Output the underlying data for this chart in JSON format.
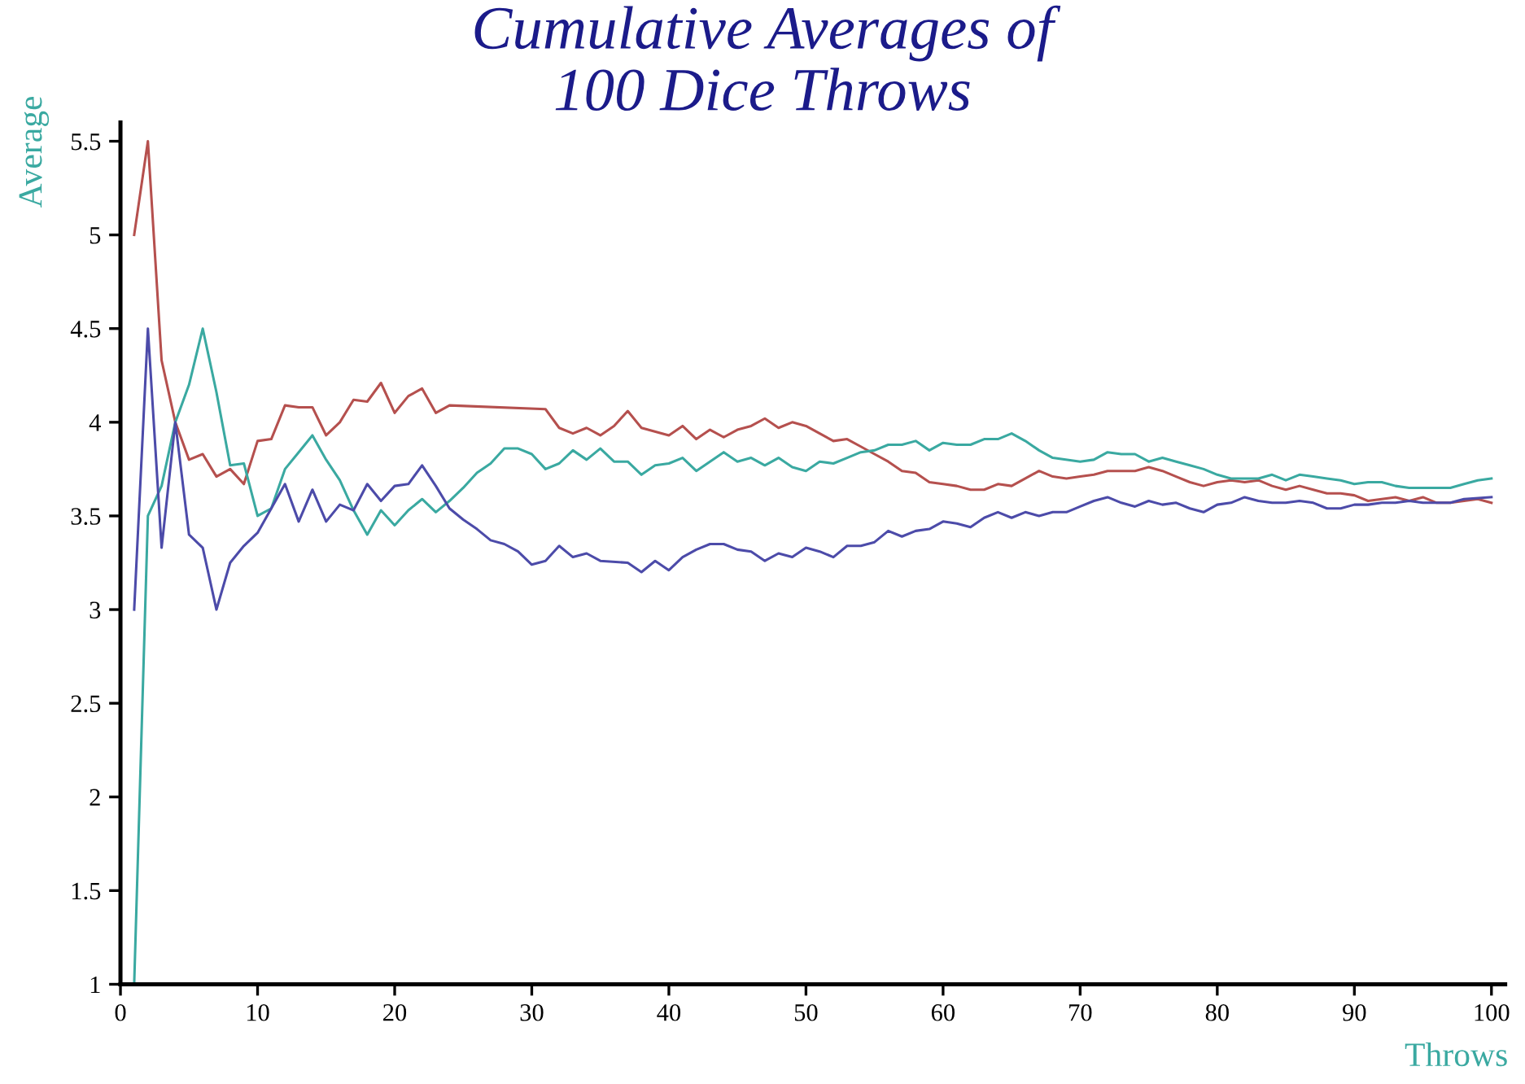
{
  "chart_data": {
    "type": "line",
    "title": "Cumulative Averages of\n100 Dice Throws",
    "xlabel": "Throws",
    "ylabel": "Average",
    "xlim": [
      0,
      101
    ],
    "xticks": [
      0,
      10,
      20,
      30,
      40,
      50,
      60,
      70,
      80,
      90,
      100
    ],
    "ylim": [
      1,
      5.6
    ],
    "yticks": [
      1,
      1.5,
      2,
      2.5,
      3,
      3.5,
      4,
      4.5,
      5,
      5.5
    ],
    "grid": false,
    "marker": "none",
    "line_style": "solid",
    "series": [
      {
        "color": "#b5504e",
        "x": [
          1,
          2,
          3,
          4,
          5,
          6,
          7,
          8,
          9,
          10,
          11,
          12,
          13,
          14,
          15,
          16,
          17,
          18,
          19,
          20,
          21,
          22,
          23,
          24,
          31,
          32,
          33,
          34,
          35,
          36,
          37,
          38,
          40,
          41,
          42,
          43,
          44,
          45,
          46,
          47,
          48,
          49,
          50,
          51,
          52,
          53,
          54,
          55,
          56,
          57,
          58,
          59,
          60,
          61,
          62,
          63,
          64,
          65,
          66,
          67,
          68,
          69,
          70,
          71,
          72,
          73,
          74,
          75,
          76,
          77,
          78,
          79,
          80,
          81,
          82,
          83,
          84,
          85,
          86,
          87,
          88,
          89,
          90,
          91,
          92,
          93,
          94,
          95,
          96,
          97,
          98,
          99,
          100
        ],
        "values": [
          5,
          5.5,
          4.33,
          4,
          3.8,
          3.83,
          3.71,
          3.75,
          3.67,
          3.9,
          3.91,
          4.09,
          4.08,
          4.08,
          3.93,
          4,
          4.12,
          4.11,
          4.21,
          4.05,
          4.14,
          4.18,
          4.05,
          4.09,
          4.07,
          3.97,
          3.94,
          3.97,
          3.93,
          3.98,
          4.06,
          3.97,
          3.93,
          3.98,
          3.91,
          3.96,
          3.92,
          3.96,
          3.98,
          4.02,
          3.97,
          4,
          3.98,
          3.94,
          3.9,
          3.91,
          3.87,
          3.83,
          3.79,
          3.74,
          3.73,
          3.68,
          3.67,
          3.66,
          3.64,
          3.64,
          3.67,
          3.66,
          3.7,
          3.74,
          3.71,
          3.7,
          3.71,
          3.72,
          3.74,
          3.74,
          3.74,
          3.76,
          3.74,
          3.71,
          3.68,
          3.66,
          3.68,
          3.69,
          3.68,
          3.69,
          3.66,
          3.64,
          3.66,
          3.64,
          3.62,
          3.62,
          3.61,
          3.58,
          3.59,
          3.6,
          3.58,
          3.6,
          3.57,
          3.57,
          3.58,
          3.59,
          3.57
        ]
      },
      {
        "color": "#3aa9a1",
        "x": [
          1,
          2,
          3,
          4,
          5,
          6,
          7,
          8,
          9,
          10,
          11,
          12,
          13,
          14,
          15,
          16,
          17,
          18,
          19,
          20,
          21,
          22,
          23,
          24,
          25,
          26,
          27,
          28,
          29,
          30,
          31,
          32,
          33,
          34,
          35,
          36,
          37,
          38,
          39,
          40,
          41,
          42,
          43,
          44,
          45,
          46,
          47,
          48,
          49,
          50,
          51,
          52,
          53,
          54,
          55,
          56,
          57,
          58,
          59,
          60,
          61,
          62,
          63,
          64,
          65,
          66,
          67,
          68,
          70,
          71,
          72,
          73,
          74,
          75,
          76,
          77,
          78,
          79,
          80,
          81,
          83,
          84,
          85,
          86,
          87,
          88,
          89,
          90,
          91,
          92,
          93,
          94,
          95,
          96,
          97,
          98,
          99,
          100
        ],
        "values": [
          1,
          3.5,
          3.66,
          4,
          4.2,
          4.5,
          4.16,
          3.77,
          3.78,
          3.5,
          3.54,
          3.75,
          3.84,
          3.93,
          3.8,
          3.69,
          3.53,
          3.4,
          3.53,
          3.45,
          3.53,
          3.59,
          3.52,
          3.58,
          3.65,
          3.73,
          3.78,
          3.86,
          3.86,
          3.83,
          3.75,
          3.78,
          3.85,
          3.8,
          3.86,
          3.79,
          3.79,
          3.72,
          3.77,
          3.78,
          3.81,
          3.74,
          3.79,
          3.84,
          3.79,
          3.81,
          3.77,
          3.81,
          3.76,
          3.74,
          3.79,
          3.78,
          3.81,
          3.84,
          3.85,
          3.88,
          3.88,
          3.9,
          3.85,
          3.89,
          3.88,
          3.88,
          3.91,
          3.91,
          3.94,
          3.9,
          3.85,
          3.81,
          3.79,
          3.8,
          3.84,
          3.83,
          3.83,
          3.79,
          3.81,
          3.79,
          3.77,
          3.75,
          3.72,
          3.7,
          3.7,
          3.72,
          3.69,
          3.72,
          3.71,
          3.7,
          3.69,
          3.67,
          3.68,
          3.68,
          3.66,
          3.65,
          3.65,
          3.65,
          3.65,
          3.67,
          3.69,
          3.7
        ]
      },
      {
        "color": "#4c4ba9",
        "x": [
          1,
          2,
          3,
          4,
          5,
          6,
          7,
          8,
          9,
          10,
          11,
          12,
          13,
          14,
          15,
          16,
          17,
          18,
          19,
          20,
          21,
          22,
          23,
          24,
          25,
          26,
          27,
          28,
          29,
          30,
          31,
          32,
          33,
          34,
          35,
          37,
          38,
          39,
          40,
          41,
          42,
          43,
          44,
          45,
          46,
          47,
          48,
          49,
          50,
          51,
          52,
          53,
          54,
          55,
          56,
          57,
          58,
          59,
          60,
          61,
          62,
          63,
          64,
          65,
          66,
          67,
          68,
          69,
          70,
          71,
          72,
          73,
          74,
          75,
          76,
          77,
          78,
          79,
          80,
          81,
          82,
          83,
          84,
          85,
          86,
          87,
          88,
          89,
          90,
          91,
          92,
          93,
          94,
          95,
          96,
          97,
          98,
          100
        ],
        "values": [
          3,
          4.5,
          3.33,
          4,
          3.4,
          3.33,
          3,
          3.25,
          3.34,
          3.41,
          3.54,
          3.67,
          3.47,
          3.64,
          3.47,
          3.56,
          3.53,
          3.67,
          3.58,
          3.66,
          3.67,
          3.77,
          3.66,
          3.54,
          3.48,
          3.43,
          3.37,
          3.35,
          3.31,
          3.24,
          3.26,
          3.34,
          3.28,
          3.3,
          3.26,
          3.25,
          3.2,
          3.26,
          3.21,
          3.28,
          3.32,
          3.35,
          3.35,
          3.32,
          3.31,
          3.26,
          3.3,
          3.28,
          3.33,
          3.31,
          3.28,
          3.34,
          3.34,
          3.36,
          3.42,
          3.39,
          3.42,
          3.43,
          3.47,
          3.46,
          3.44,
          3.49,
          3.52,
          3.49,
          3.52,
          3.5,
          3.52,
          3.52,
          3.55,
          3.58,
          3.6,
          3.57,
          3.55,
          3.58,
          3.56,
          3.57,
          3.54,
          3.52,
          3.56,
          3.57,
          3.6,
          3.58,
          3.57,
          3.57,
          3.58,
          3.57,
          3.54,
          3.54,
          3.56,
          3.56,
          3.57,
          3.57,
          3.58,
          3.57,
          3.57,
          3.57,
          3.59,
          3.6
        ]
      }
    ]
  }
}
